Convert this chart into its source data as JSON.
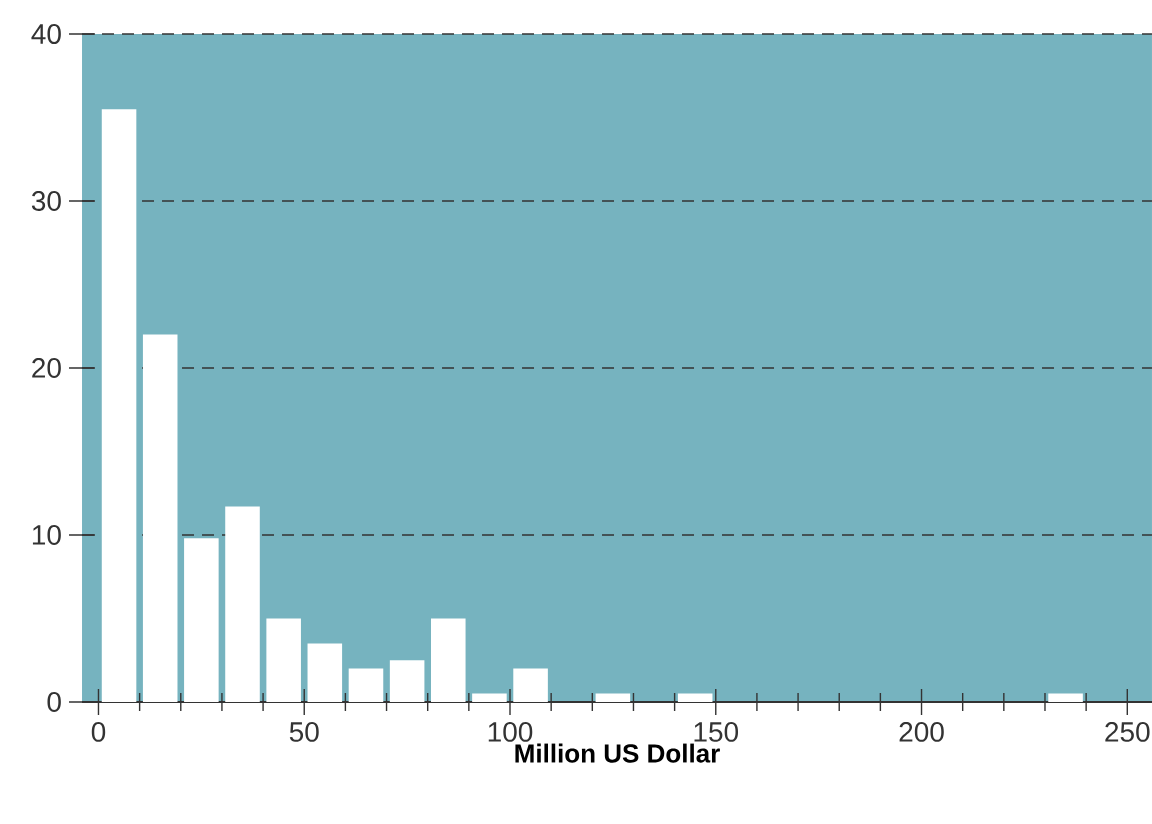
{
  "chart_data": {
    "type": "histogram",
    "xlabel": "**Million US Dollar**",
    "bins": [
      0,
      10,
      20,
      30,
      40,
      50,
      60,
      70,
      80,
      90,
      100,
      110,
      120,
      130,
      140,
      150,
      160,
      170,
      180,
      190,
      200,
      210,
      220,
      230,
      240,
      250
    ],
    "values": [
      35.5,
      22,
      9.8,
      11.7,
      5,
      3.5,
      2,
      2.5,
      5,
      0.5,
      2,
      0,
      0.5,
      0,
      0.5,
      0,
      0,
      0,
      0,
      0,
      0,
      0,
      0,
      0.5,
      0
    ],
    "color": "#ffffff",
    "xlim": [
      -4,
      256
    ],
    "ylim": [
      0,
      40
    ],
    "xticks": [
      0,
      {
        "value": 10,
        "label": null
      },
      {
        "value": 20,
        "label": null
      },
      {
        "value": 30,
        "label": null
      },
      {
        "value": 40,
        "label": null
      },
      50,
      {
        "value": 60,
        "label": null
      },
      {
        "value": 70,
        "label": null
      },
      {
        "value": 80,
        "label": null
      },
      {
        "value": 90,
        "label": null
      },
      100,
      {
        "value": 110,
        "label": null
      },
      {
        "value": 120,
        "label": null
      },
      {
        "value": 130,
        "label": null
      },
      {
        "value": 140,
        "label": null
      },
      150,
      {
        "value": 160,
        "label": null
      },
      {
        "value": 170,
        "label": null
      },
      {
        "value": 180,
        "label": null
      },
      {
        "value": 190,
        "label": null
      },
      200,
      {
        "value": 210,
        "label": null
      },
      {
        "value": 220,
        "label": null
      },
      {
        "value": 230,
        "label": null
      },
      {
        "value": 240,
        "label": null
      },
      250
    ],
    "yticks": [
      0,
      10,
      20,
      30,
      40
    ],
    "grid": "y",
    "line_style": "dashed"
  }
}
